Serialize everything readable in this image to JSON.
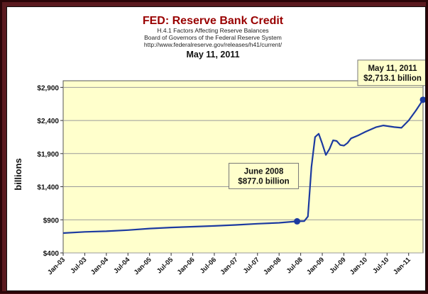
{
  "chart_data": {
    "type": "line",
    "title": "FED: Reserve Bank Credit",
    "subtitle_lines": [
      "H.4.1 Factors Affecting Reserve Balances",
      "Board of Governors of the Federal Reserve System",
      "http://www.federalreserve.gov/releases/h41/current/"
    ],
    "date": "May 11, 2011",
    "ylabel": "billions",
    "xlabel": "",
    "ylim": [
      400,
      3000
    ],
    "xlim": [
      "2003-01",
      "2011-05"
    ],
    "yticks": [
      {
        "value": 400,
        "label": "$400"
      },
      {
        "value": 900,
        "label": "$900"
      },
      {
        "value": 1400,
        "label": "$1,400"
      },
      {
        "value": 1900,
        "label": "$1,900"
      },
      {
        "value": 2400,
        "label": "$2,400"
      },
      {
        "value": 2900,
        "label": "$2,900"
      }
    ],
    "xticks": [
      {
        "date": "2003-01",
        "label": "Jan-03"
      },
      {
        "date": "2003-07",
        "label": "Jul-03"
      },
      {
        "date": "2004-01",
        "label": "Jan-04"
      },
      {
        "date": "2004-07",
        "label": "Jul-04"
      },
      {
        "date": "2005-01",
        "label": "Jan-05"
      },
      {
        "date": "2005-07",
        "label": "Jul-05"
      },
      {
        "date": "2006-01",
        "label": "Jan-06"
      },
      {
        "date": "2006-07",
        "label": "Jul-06"
      },
      {
        "date": "2007-01",
        "label": "Jan-07"
      },
      {
        "date": "2007-07",
        "label": "Jul-07"
      },
      {
        "date": "2008-01",
        "label": "Jan-08"
      },
      {
        "date": "2008-07",
        "label": "Jul-08"
      },
      {
        "date": "2009-01",
        "label": "Jan-09"
      },
      {
        "date": "2009-07",
        "label": "Jul-09"
      },
      {
        "date": "2010-01",
        "label": "Jan-10"
      },
      {
        "date": "2010-07",
        "label": "Jul-10"
      },
      {
        "date": "2011-01",
        "label": "Jan-11"
      }
    ],
    "series": [
      {
        "line_color": "#1c3aa0",
        "points": [
          {
            "x": "2003-01",
            "y": 700
          },
          {
            "x": "2003-07",
            "y": 718
          },
          {
            "x": "2004-01",
            "y": 727
          },
          {
            "x": "2004-07",
            "y": 745
          },
          {
            "x": "2005-01",
            "y": 768
          },
          {
            "x": "2005-07",
            "y": 784
          },
          {
            "x": "2006-01",
            "y": 796
          },
          {
            "x": "2006-07",
            "y": 808
          },
          {
            "x": "2007-01",
            "y": 823
          },
          {
            "x": "2007-07",
            "y": 841
          },
          {
            "x": "2008-01",
            "y": 855
          },
          {
            "x": "2008-06",
            "y": 877
          },
          {
            "x": "2008-08",
            "y": 880
          },
          {
            "x": "2008-09",
            "y": 950
          },
          {
            "x": "2008-10",
            "y": 1700
          },
          {
            "x": "2008-11",
            "y": 2150
          },
          {
            "x": "2008-12",
            "y": 2200
          },
          {
            "x": "2009-01",
            "y": 2050
          },
          {
            "x": "2009-02",
            "y": 1880
          },
          {
            "x": "2009-03",
            "y": 1970
          },
          {
            "x": "2009-04",
            "y": 2100
          },
          {
            "x": "2009-05",
            "y": 2090
          },
          {
            "x": "2009-06",
            "y": 2030
          },
          {
            "x": "2009-07",
            "y": 2020
          },
          {
            "x": "2009-08",
            "y": 2060
          },
          {
            "x": "2009-09",
            "y": 2130
          },
          {
            "x": "2009-11",
            "y": 2175
          },
          {
            "x": "2010-01",
            "y": 2230
          },
          {
            "x": "2010-04",
            "y": 2300
          },
          {
            "x": "2010-06",
            "y": 2325
          },
          {
            "x": "2010-09",
            "y": 2300
          },
          {
            "x": "2010-11",
            "y": 2290
          },
          {
            "x": "2011-01",
            "y": 2400
          },
          {
            "x": "2011-03",
            "y": 2550
          },
          {
            "x": "2011-05",
            "y": 2713.1
          }
        ]
      }
    ],
    "annotations": [
      {
        "name": "june-2008",
        "x": "2008-06",
        "y": 877,
        "lines": [
          "June 2008",
          "$877.0 billion"
        ]
      },
      {
        "name": "may-2011",
        "x": "2011-05",
        "y": 2713.1,
        "lines": [
          "May 11, 2011",
          "$2,713.1 billion"
        ]
      }
    ],
    "grid": true,
    "legend": false,
    "colors": {
      "plot_background": "#ffffcc",
      "line": "#1c3aa0",
      "marker": "#1c3aa0",
      "title": "#990000",
      "frame": "#5a1a1f"
    }
  }
}
